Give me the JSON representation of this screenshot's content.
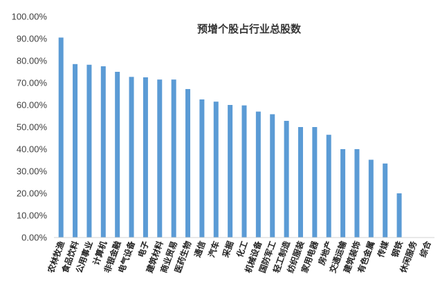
{
  "chart_data": {
    "type": "bar",
    "title": "预增个股占行业总股数",
    "xlabel": "",
    "ylabel": "",
    "ylim": [
      0,
      1
    ],
    "yticks": [
      "0.00%",
      "10.00%",
      "20.00%",
      "30.00%",
      "40.00%",
      "50.00%",
      "60.00%",
      "70.00%",
      "80.00%",
      "90.00%",
      "100.00%"
    ],
    "grid": false,
    "legend": "none",
    "bar_color": "#5B9BD5",
    "categories": [
      "农林牧渔",
      "食品饮料",
      "公用事业",
      "计算机",
      "非银金融",
      "电气设备",
      "电子",
      "建筑材料",
      "商业贸易",
      "医药生物",
      "通信",
      "汽车",
      "采掘",
      "化工",
      "机械设备",
      "国防军工",
      "轻工制造",
      "纺织服装",
      "家用电器",
      "房地产",
      "交通运输",
      "建筑装饰",
      "有色金属",
      "传媒",
      "钢铁",
      "休闲服务",
      "综合"
    ],
    "values": [
      0.905,
      0.785,
      0.782,
      0.775,
      0.75,
      0.727,
      0.725,
      0.715,
      0.715,
      0.672,
      0.625,
      0.615,
      0.6,
      0.598,
      0.57,
      0.558,
      0.528,
      0.5,
      0.5,
      0.465,
      0.4,
      0.4,
      0.352,
      0.335,
      0.2,
      0,
      0
    ]
  }
}
